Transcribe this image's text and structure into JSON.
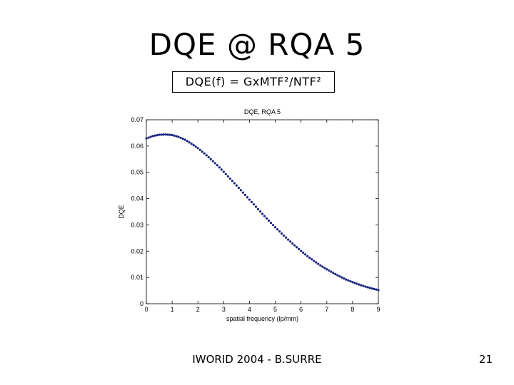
{
  "slide": {
    "title": "DQE @ RQA 5",
    "formula": "DQE(f) = GxMTF²/NTF²",
    "footer": "IWORID 2004 - B.SURRE",
    "page_number": "21"
  },
  "chart_data": {
    "type": "scatter",
    "title": "DQE, RQA 5",
    "xlabel": "spatial frequency (lp/mm)",
    "ylabel": "DQE",
    "xlim": [
      0,
      9
    ],
    "ylim": [
      0,
      0.07
    ],
    "xticks": [
      "0",
      "1",
      "2",
      "3",
      "4",
      "5",
      "6",
      "7",
      "8",
      "9"
    ],
    "yticks": [
      "0",
      "0.01",
      "0.02",
      "0.03",
      "0.04",
      "0.05",
      "0.06",
      "0.07"
    ],
    "grid": false,
    "marker_color": "#1a237e",
    "series": [
      {
        "x": [
          0.0,
          0.25,
          0.5,
          0.75,
          1.0,
          1.25,
          1.5,
          1.75,
          2.0,
          2.25,
          2.5,
          2.75,
          3.0,
          3.25,
          3.5,
          3.75,
          4.0,
          4.25,
          4.5,
          4.75,
          5.0,
          5.25,
          5.5,
          5.75,
          6.0,
          6.25,
          6.5,
          6.75,
          7.0,
          7.25,
          7.5,
          7.75,
          8.0,
          8.25,
          8.5,
          8.75,
          9.0
        ],
        "y": [
          0.0629,
          0.0638,
          0.0643,
          0.0644,
          0.0642,
          0.0635,
          0.0624,
          0.0609,
          0.0592,
          0.0572,
          0.055,
          0.0527,
          0.0502,
          0.0476,
          0.045,
          0.0423,
          0.0396,
          0.0369,
          0.0342,
          0.0316,
          0.0291,
          0.0267,
          0.0244,
          0.0222,
          0.0201,
          0.0181,
          0.0163,
          0.0146,
          0.0131,
          0.0117,
          0.0104,
          0.0092,
          0.0082,
          0.0073,
          0.0065,
          0.0058,
          0.0052
        ]
      }
    ]
  }
}
